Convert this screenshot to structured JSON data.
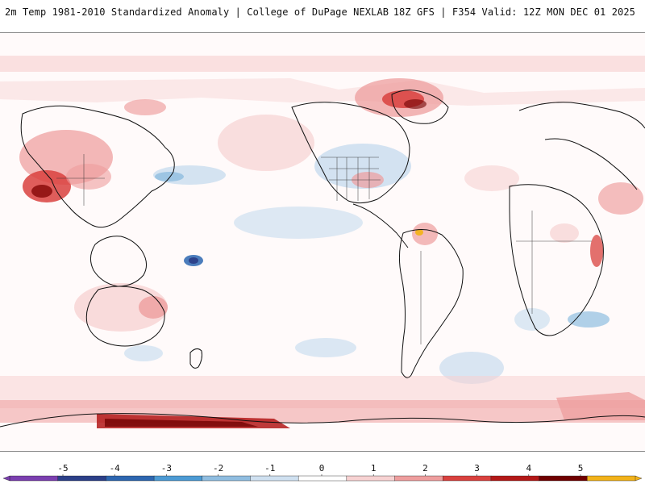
{
  "header": {
    "left_text": "2m Temp 1981-2010 Standardized Anomaly | College of DuPage NEXLAB",
    "right_text": "18Z GFS | F354 Valid: 12Z MON DEC 01 2025"
  },
  "legend": {
    "tick_labels": [
      "-5",
      "-4",
      "-3",
      "-2",
      "-1",
      "0",
      "1",
      "2",
      "3",
      "4",
      "5"
    ],
    "colors": [
      "#7b3fb0",
      "#2b3f88",
      "#2d66b0",
      "#4c9ad4",
      "#8fbde0",
      "#cfe0f0",
      "#ffffff",
      "#f7d2d2",
      "#ee9d9d",
      "#d9413e",
      "#b31817",
      "#6f0000",
      "#f2b21a"
    ]
  },
  "map": {
    "projection": "equirectangular, Pacific-centered",
    "features": {
      "antarctic_band_color": "#b31817",
      "asia_hotspot_color": "#d9413e",
      "arctic_hotspot_color": "#b31817",
      "cool_anomaly_color": "#cfe0f0",
      "warm_anomaly_color": "#f7d2d2",
      "outline_color": "#111111"
    }
  }
}
